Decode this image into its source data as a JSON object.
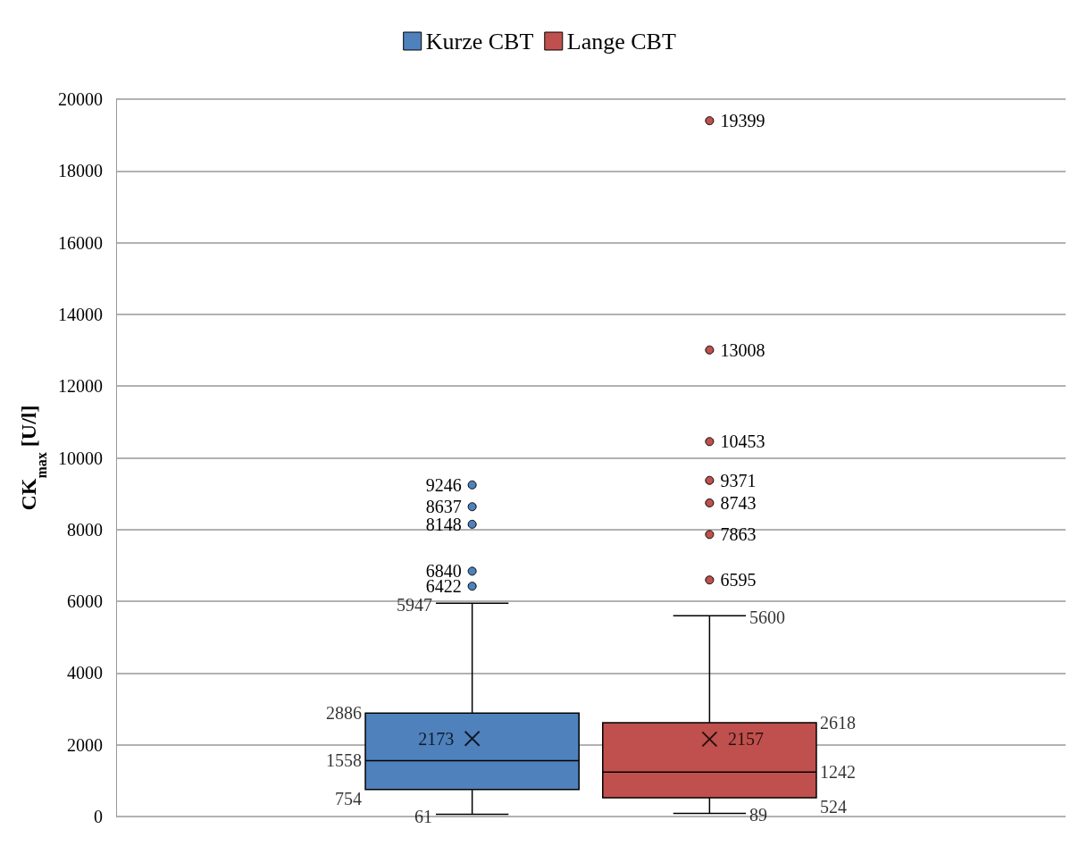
{
  "chart_data": {
    "type": "box",
    "ylabel": "CK$_{max}$ [U/l]",
    "categories": [
      null
    ],
    "series": [
      {
        "name": "Kurze CBT",
        "color": "#4f81bd",
        "boxes": [
          {
            "low": 61,
            "q1": 754,
            "median": 1558,
            "q3": 2886,
            "high": 5947,
            "mean": 2173,
            "outliers": [
              6422,
              6840,
              8148,
              8637,
              9246
            ]
          }
        ]
      },
      {
        "name": "Lange CBT",
        "color": "#c0504d",
        "boxes": [
          {
            "low": 89,
            "q1": 524,
            "median": 1242,
            "q3": 2618,
            "high": 5600,
            "mean": 2157,
            "outliers": [
              6595,
              7863,
              8743,
              9371,
              10453,
              13008,
              19399
            ]
          }
        ]
      }
    ],
    "ylim": [
      0,
      20000
    ],
    "yticks": [
      0,
      2000,
      4000,
      6000,
      8000,
      10000,
      12000,
      14000,
      16000,
      18000,
      20000
    ],
    "grid": "y",
    "legend": "top",
    "annotations": [
      "2886",
      "1558",
      "754",
      "5947",
      "61",
      "2173",
      "6422",
      "6840",
      "8148",
      "8637",
      "9246",
      "2618",
      "1242",
      "524",
      "5600",
      "89",
      "2157",
      "6595",
      "7863",
      "8743",
      "9371",
      "10453",
      "13008",
      "19399"
    ]
  }
}
